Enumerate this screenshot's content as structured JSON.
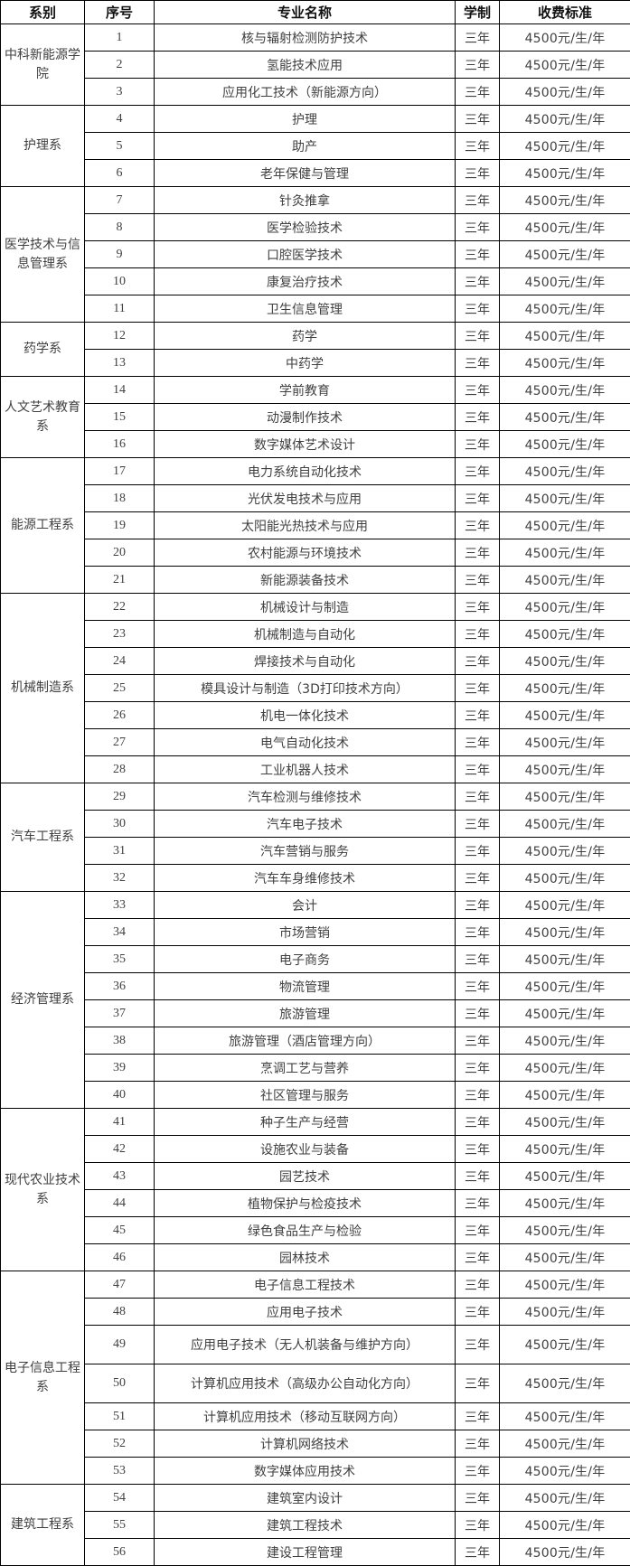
{
  "colors": {
    "background": "#ffffff",
    "border": "#000000",
    "header_text": "#111111",
    "body_text": "#404040"
  },
  "table": {
    "headers": {
      "department": "系别",
      "index": "序号",
      "major": "专业名称",
      "duration": "学制",
      "fee": "收费标准"
    },
    "departments": [
      {
        "name": "中科新能源学院",
        "rows": [
          {
            "index": "1",
            "major": "核与辐射检测防护技术",
            "duration": "三年",
            "fee": "4500元/生/年"
          },
          {
            "index": "2",
            "major": "氢能技术应用",
            "duration": "三年",
            "fee": "4500元/生/年"
          },
          {
            "index": "3",
            "major": "应用化工技术（新能源方向）",
            "duration": "三年",
            "fee": "4500元/生/年"
          }
        ]
      },
      {
        "name": "护理系",
        "rows": [
          {
            "index": "4",
            "major": "护理",
            "duration": "三年",
            "fee": "4500元/生/年"
          },
          {
            "index": "5",
            "major": "助产",
            "duration": "三年",
            "fee": "4500元/生/年"
          },
          {
            "index": "6",
            "major": "老年保健与管理",
            "duration": "三年",
            "fee": "4500元/生/年"
          }
        ]
      },
      {
        "name": "医学技术与信息管理系",
        "rows": [
          {
            "index": "7",
            "major": "针灸推拿",
            "duration": "三年",
            "fee": "4500元/生/年"
          },
          {
            "index": "8",
            "major": "医学检验技术",
            "duration": "三年",
            "fee": "4500元/生/年"
          },
          {
            "index": "9",
            "major": "口腔医学技术",
            "duration": "三年",
            "fee": "4500元/生/年"
          },
          {
            "index": "10",
            "major": "康复治疗技术",
            "duration": "三年",
            "fee": "4500元/生/年"
          },
          {
            "index": "11",
            "major": "卫生信息管理",
            "duration": "三年",
            "fee": "4500元/生/年"
          }
        ]
      },
      {
        "name": "药学系",
        "rows": [
          {
            "index": "12",
            "major": "药学",
            "duration": "三年",
            "fee": "4500元/生/年"
          },
          {
            "index": "13",
            "major": "中药学",
            "duration": "三年",
            "fee": "4500元/生/年"
          }
        ]
      },
      {
        "name": "人文艺术教育系",
        "rows": [
          {
            "index": "14",
            "major": "学前教育",
            "duration": "三年",
            "fee": "4500元/生/年"
          },
          {
            "index": "15",
            "major": "动漫制作技术",
            "duration": "三年",
            "fee": "4500元/生/年"
          },
          {
            "index": "16",
            "major": "数字媒体艺术设计",
            "duration": "三年",
            "fee": "4500元/生/年"
          }
        ]
      },
      {
        "name": "能源工程系",
        "rows": [
          {
            "index": "17",
            "major": "电力系统自动化技术",
            "duration": "三年",
            "fee": "4500元/生/年"
          },
          {
            "index": "18",
            "major": "光伏发电技术与应用",
            "duration": "三年",
            "fee": "4500元/生/年"
          },
          {
            "index": "19",
            "major": "太阳能光热技术与应用",
            "duration": "三年",
            "fee": "4500元/生/年"
          },
          {
            "index": "20",
            "major": "农村能源与环境技术",
            "duration": "三年",
            "fee": "4500元/生/年"
          },
          {
            "index": "21",
            "major": "新能源装备技术",
            "duration": "三年",
            "fee": "4500元/生/年"
          }
        ]
      },
      {
        "name": "机械制造系",
        "rows": [
          {
            "index": "22",
            "major": "机械设计与制造",
            "duration": "三年",
            "fee": "4500元/生/年"
          },
          {
            "index": "23",
            "major": "机械制造与自动化",
            "duration": "三年",
            "fee": "4500元/生/年"
          },
          {
            "index": "24",
            "major": "焊接技术与自动化",
            "duration": "三年",
            "fee": "4500元/生/年"
          },
          {
            "index": "25",
            "major": "模具设计与制造（3D打印技术方向）",
            "duration": "三年",
            "fee": "4500元/生/年"
          },
          {
            "index": "26",
            "major": "机电一体化技术",
            "duration": "三年",
            "fee": "4500元/生/年"
          },
          {
            "index": "27",
            "major": "电气自动化技术",
            "duration": "三年",
            "fee": "4500元/生/年"
          },
          {
            "index": "28",
            "major": "工业机器人技术",
            "duration": "三年",
            "fee": "4500元/生/年"
          }
        ]
      },
      {
        "name": "汽车工程系",
        "rows": [
          {
            "index": "29",
            "major": "汽车检测与维修技术",
            "duration": "三年",
            "fee": "4500元/生/年"
          },
          {
            "index": "30",
            "major": "汽车电子技术",
            "duration": "三年",
            "fee": "4500元/生/年"
          },
          {
            "index": "31",
            "major": "汽车营销与服务",
            "duration": "三年",
            "fee": "4500元/生/年"
          },
          {
            "index": "32",
            "major": "汽车车身维修技术",
            "duration": "三年",
            "fee": "4500元/生/年"
          }
        ]
      },
      {
        "name": "经济管理系",
        "rows": [
          {
            "index": "33",
            "major": "会计",
            "duration": "三年",
            "fee": "4500元/生/年"
          },
          {
            "index": "34",
            "major": "市场营销",
            "duration": "三年",
            "fee": "4500元/生/年"
          },
          {
            "index": "35",
            "major": "电子商务",
            "duration": "三年",
            "fee": "4500元/生/年"
          },
          {
            "index": "36",
            "major": "物流管理",
            "duration": "三年",
            "fee": "4500元/生/年"
          },
          {
            "index": "37",
            "major": "旅游管理",
            "duration": "三年",
            "fee": "4500元/生/年"
          },
          {
            "index": "38",
            "major": "旅游管理（酒店管理方向）",
            "duration": "三年",
            "fee": "4500元/生/年"
          },
          {
            "index": "39",
            "major": "烹调工艺与营养",
            "duration": "三年",
            "fee": "4500元/生/年"
          },
          {
            "index": "40",
            "major": "社区管理与服务",
            "duration": "三年",
            "fee": "4500元/生/年"
          }
        ]
      },
      {
        "name": "现代农业技术系",
        "rows": [
          {
            "index": "41",
            "major": "种子生产与经营",
            "duration": "三年",
            "fee": "4500元/生/年"
          },
          {
            "index": "42",
            "major": "设施农业与装备",
            "duration": "三年",
            "fee": "4500元/生/年"
          },
          {
            "index": "43",
            "major": "园艺技术",
            "duration": "三年",
            "fee": "4500元/生/年"
          },
          {
            "index": "44",
            "major": "植物保护与检疫技术",
            "duration": "三年",
            "fee": "4500元/生/年"
          },
          {
            "index": "45",
            "major": "绿色食品生产与检验",
            "duration": "三年",
            "fee": "4500元/生/年"
          },
          {
            "index": "46",
            "major": "园林技术",
            "duration": "三年",
            "fee": "4500元/生/年"
          }
        ]
      },
      {
        "name": "电子信息工程系",
        "rows": [
          {
            "index": "47",
            "major": "电子信息工程技术",
            "duration": "三年",
            "fee": "4500元/生/年"
          },
          {
            "index": "48",
            "major": "应用电子技术",
            "duration": "三年",
            "fee": "4500元/生/年"
          },
          {
            "index": "49",
            "major": "应用电子技术（无人机装备与维护方向）",
            "duration": "三年",
            "fee": "4500元/生/年"
          },
          {
            "index": "50",
            "major": "计算机应用技术（高级办公自动化方向）",
            "duration": "三年",
            "fee": "4500元/生/年"
          },
          {
            "index": "51",
            "major": "计算机应用技术（移动互联网方向）",
            "duration": "三年",
            "fee": "4500元/生/年"
          },
          {
            "index": "52",
            "major": "计算机网络技术",
            "duration": "三年",
            "fee": "4500元/生/年"
          },
          {
            "index": "53",
            "major": "数字媒体应用技术",
            "duration": "三年",
            "fee": "4500元/生/年"
          }
        ]
      },
      {
        "name": "建筑工程系",
        "rows": [
          {
            "index": "54",
            "major": "建筑室内设计",
            "duration": "三年",
            "fee": "4500元/生/年"
          },
          {
            "index": "55",
            "major": "建筑工程技术",
            "duration": "三年",
            "fee": "4500元/生/年"
          },
          {
            "index": "56",
            "major": "建设工程管理",
            "duration": "三年",
            "fee": "4500元/生/年"
          }
        ]
      }
    ]
  }
}
